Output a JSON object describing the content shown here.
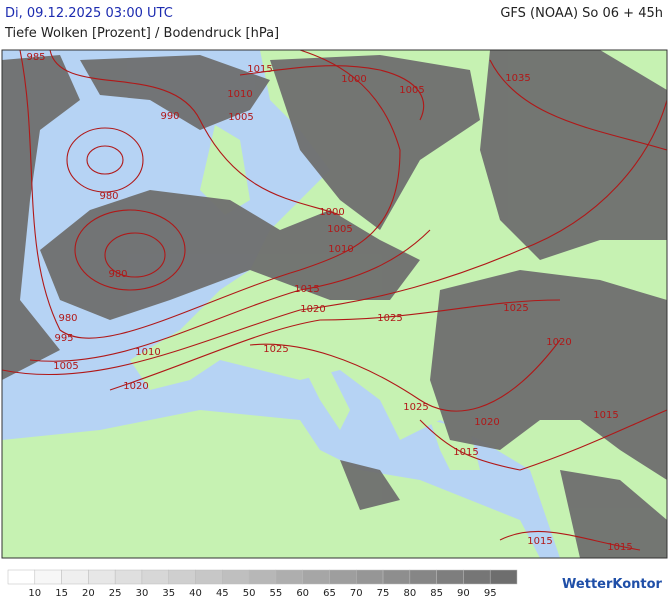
{
  "header": {
    "datetime": "Di, 09.12.2025 03:00 UTC",
    "model": "GFS (NOAA) So 06 + 45h",
    "title": "Tiefe Wolken [Prozent] / Bodendruck [hPa]"
  },
  "isobar_labels": [
    "985",
    "1015",
    "1010",
    "1000",
    "1005",
    "1005",
    "990",
    "1035",
    "980",
    "1000",
    "1005",
    "1010",
    "980",
    "1015",
    "1020",
    "1025",
    "1025",
    "1020",
    "980",
    "995",
    "1010",
    "1025",
    "1005",
    "1020",
    "1025",
    "1015",
    "1020",
    "1015",
    "1015",
    "1015"
  ],
  "legend": {
    "levels": [
      10,
      15,
      20,
      25,
      30,
      35,
      40,
      45,
      50,
      55,
      60,
      65,
      70,
      75,
      80,
      85,
      90,
      95
    ]
  },
  "logo": "WetterKontor"
}
